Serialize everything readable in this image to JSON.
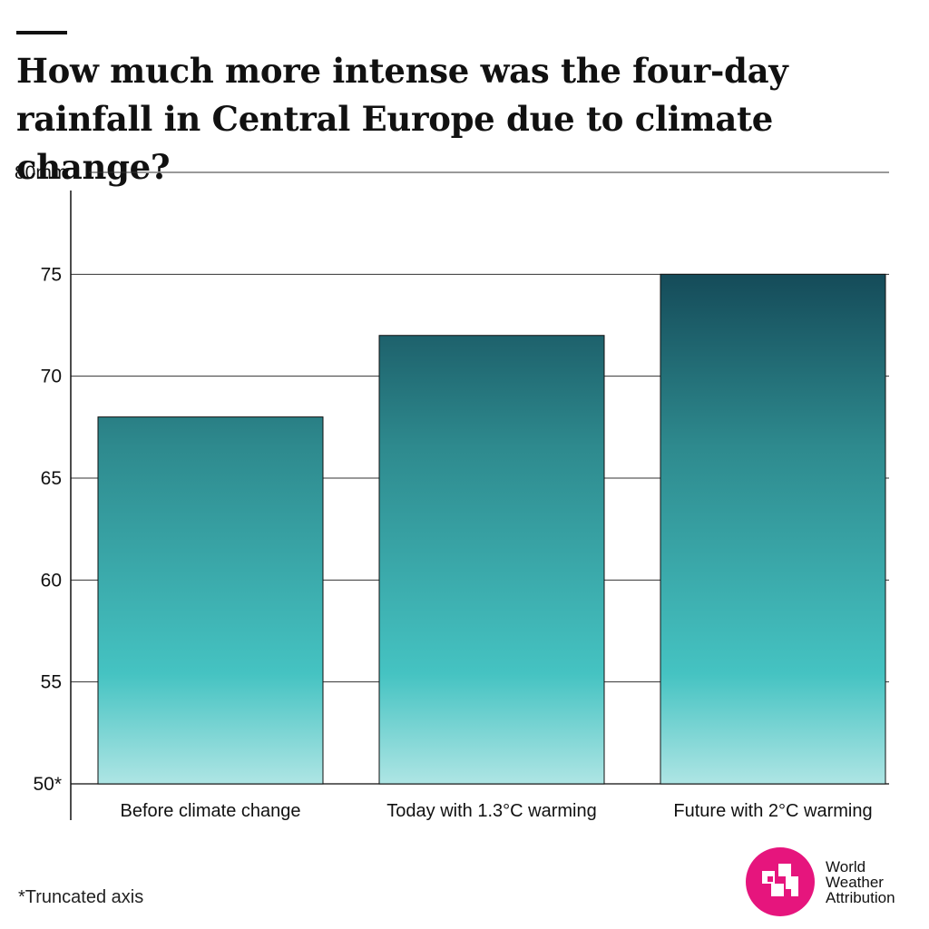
{
  "title": "How much more intense was the four-day rainfall in Central Europe due to climate change?",
  "footnote": "*Truncated axis",
  "brand": {
    "line1": "World",
    "line2": "Weather",
    "line3": "Attribution",
    "color": "#e6157d",
    "icon": "wwa-logo-icon"
  },
  "colors": {
    "bar_top": "#06263a",
    "bar_mid": "#2e8a8e",
    "bar_teal": "#45c3c2",
    "bar_bottom": "#aee5e4",
    "gridline": "#333333"
  },
  "chart_data": {
    "type": "bar",
    "title": "How much more intense was the four-day rainfall in Central Europe due to climate change?",
    "categories": [
      "Before climate change",
      "Today with 1.3°C warming",
      "Future with 2°C warming"
    ],
    "values": [
      68,
      72,
      75
    ],
    "ylim": [
      50,
      80
    ],
    "yticks": [
      50,
      55,
      60,
      65,
      70,
      75,
      80
    ],
    "ytick_labels": [
      "50*",
      "55",
      "60",
      "65",
      "70",
      "75",
      "80mm"
    ],
    "xlabel": "",
    "ylabel": "",
    "grid": true,
    "legend": "none"
  }
}
